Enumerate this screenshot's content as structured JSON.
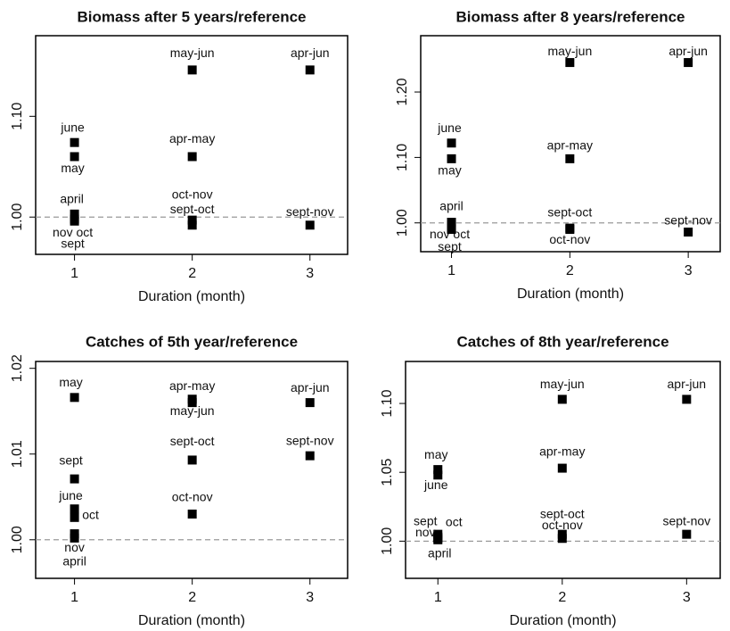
{
  "chart_data": [
    {
      "type": "scatter",
      "title": "Biomass after 5 years/reference",
      "xlabel": "Duration (month)",
      "xlim": [
        0.67,
        3.32
      ],
      "xticks": [
        1,
        2,
        3
      ],
      "ylim": [
        0.963,
        1.18
      ],
      "yticks": [
        {
          "value": 1.0,
          "label": "1.00"
        },
        {
          "value": 1.1,
          "label": "1.10"
        }
      ],
      "reference_line": 1,
      "color": "#000000",
      "x": [
        1,
        1,
        1,
        1,
        1,
        2,
        2,
        2,
        2,
        3,
        3
      ],
      "values": [
        1.074,
        1.06,
        1.003,
        0.998,
        0.996,
        1.146,
        1.06,
        0.997,
        0.992,
        1.146,
        0.992
      ],
      "point_labels": [
        "june",
        "may",
        "april",
        "nov oct",
        "sept",
        "may-jun",
        "apr-may",
        "oct-nov",
        "sept-oct",
        "apr-jun",
        "sept-nov"
      ]
    },
    {
      "type": "scatter",
      "title": "Biomass after 8 years/reference",
      "xlabel": "Duration (month)",
      "xlim": [
        0.74,
        3.27
      ],
      "xticks": [
        1,
        2,
        3
      ],
      "ylim": [
        0.956,
        1.286
      ],
      "yticks": [
        {
          "value": 1.0,
          "label": "1.00"
        },
        {
          "value": 1.1,
          "label": "1.10"
        },
        {
          "value": 1.2,
          "label": "1.20"
        }
      ],
      "reference_line": 1,
      "color": "#000000",
      "x": [
        1,
        1,
        1,
        1,
        1,
        2,
        2,
        2,
        2,
        3,
        3
      ],
      "values": [
        1.122,
        1.098,
        1.001,
        0.995,
        0.99,
        1.245,
        1.098,
        0.992,
        0.99,
        1.245,
        0.986
      ],
      "point_labels": [
        "june",
        "may",
        "april",
        "nov oct",
        "sept",
        "may-jun",
        "apr-may",
        "sept-oct",
        "oct-nov",
        "apr-jun",
        "sept-nov"
      ]
    },
    {
      "type": "scatter",
      "title": "Catches of 5th year/reference",
      "xlabel": "Duration (month)",
      "xlim": [
        0.67,
        3.32
      ],
      "xticks": [
        1,
        2,
        3
      ],
      "ylim": [
        0.9955,
        1.0208
      ],
      "yticks": [
        {
          "value": 1.0,
          "label": "1.00"
        },
        {
          "value": 1.01,
          "label": "1.01"
        },
        {
          "value": 1.02,
          "label": "1.02"
        }
      ],
      "reference_line": 1,
      "color": "#000000",
      "x": [
        1,
        1,
        1,
        1,
        1,
        1,
        2,
        2,
        2,
        2,
        3,
        3
      ],
      "values": [
        1.0166,
        1.0071,
        1.0036,
        1.0026,
        1.0007,
        1.0002,
        1.0164,
        1.016,
        1.0093,
        1.003,
        1.016,
        1.0098
      ],
      "point_labels": [
        "may",
        "sept",
        "june",
        "oct",
        "nov",
        "april",
        "apr-may",
        "may-jun",
        "sept-oct",
        "oct-nov",
        "apr-jun",
        "sept-nov"
      ]
    },
    {
      "type": "scatter",
      "title": "Catches of 8th year/reference",
      "xlabel": "Duration (month)",
      "xlim": [
        0.74,
        3.27
      ],
      "xticks": [
        1,
        2,
        3
      ],
      "ylim": [
        0.973,
        1.1305
      ],
      "yticks": [
        {
          "value": 1.0,
          "label": "1.00"
        },
        {
          "value": 1.05,
          "label": "1.05"
        },
        {
          "value": 1.1,
          "label": "1.10"
        }
      ],
      "reference_line": 1,
      "color": "#000000",
      "x": [
        1,
        1,
        1,
        1,
        1,
        1,
        2,
        2,
        2,
        2,
        3,
        3
      ],
      "values": [
        1.052,
        1.048,
        1.005,
        1.002,
        1.003,
        1.001,
        1.103,
        1.053,
        1.005,
        1.002,
        1.103,
        1.005
      ],
      "point_labels": [
        "may",
        "june",
        "sept",
        "nov",
        "oct",
        "april",
        "may-jun",
        "apr-may",
        "sept-oct",
        "oct-nov",
        "apr-jun",
        "sept-nov"
      ]
    }
  ]
}
